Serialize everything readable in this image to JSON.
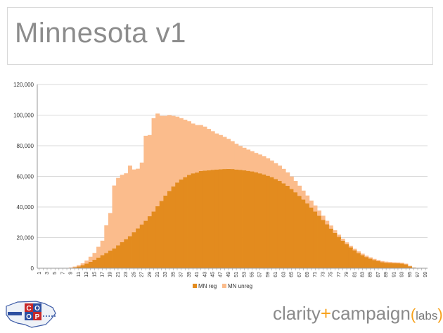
{
  "slide": {
    "title": "Minnesota v1"
  },
  "branding": {
    "coop_logo": "co-op",
    "brand_main": "clarity",
    "brand_plus": "+",
    "brand_second": "campaign",
    "brand_labs_open": "(",
    "brand_labs": "labs",
    "brand_labs_close": ")",
    "plus_color": "#f7a11a"
  },
  "chart_data": {
    "type": "bar",
    "stacked": true,
    "title": "",
    "xlabel": "",
    "ylabel": "",
    "ylim": [
      0,
      120000
    ],
    "yticks": [
      "0",
      "20,000",
      "40,000",
      "60,000",
      "80,000",
      "100,000",
      "120,000"
    ],
    "x": [
      1,
      2,
      3,
      4,
      5,
      6,
      7,
      8,
      9,
      10,
      11,
      12,
      13,
      14,
      15,
      16,
      17,
      18,
      19,
      20,
      21,
      22,
      23,
      24,
      25,
      26,
      27,
      28,
      29,
      30,
      31,
      32,
      33,
      34,
      35,
      36,
      37,
      38,
      39,
      40,
      41,
      42,
      43,
      44,
      45,
      46,
      47,
      48,
      49,
      50,
      51,
      52,
      53,
      54,
      55,
      56,
      57,
      58,
      59,
      60,
      61,
      62,
      63,
      64,
      65,
      66,
      67,
      68,
      69,
      70,
      71,
      72,
      73,
      74,
      75,
      76,
      77,
      78,
      79,
      80,
      81,
      82,
      83,
      84,
      85,
      86,
      87,
      88,
      89,
      90,
      91,
      92,
      93,
      94,
      95,
      96,
      97,
      98,
      99
    ],
    "x_tick_labels": [
      "1",
      "3",
      "5",
      "7",
      "9",
      "11",
      "13",
      "15",
      "17",
      "19",
      "21",
      "23",
      "25",
      "27",
      "29",
      "31",
      "33",
      "35",
      "37",
      "39",
      "41",
      "43",
      "45",
      "47",
      "49",
      "51",
      "53",
      "55",
      "57",
      "59",
      "61",
      "63",
      "65",
      "67",
      "69",
      "71",
      "73",
      "75",
      "77",
      "79",
      "81",
      "83",
      "85",
      "87",
      "89",
      "91",
      "93",
      "95",
      "97",
      "99"
    ],
    "grid": true,
    "legend_position": "bottom",
    "series": [
      {
        "name": "MN reg",
        "color": "#e38b1e",
        "values": [
          0,
          0,
          0,
          0,
          0,
          0,
          0,
          0,
          200,
          600,
          1200,
          2000,
          3000,
          4200,
          5500,
          7000,
          8500,
          10000,
          11500,
          13000,
          15000,
          17000,
          19000,
          21000,
          23500,
          26000,
          28500,
          31000,
          34000,
          37000,
          40500,
          44000,
          47500,
          50500,
          53500,
          56000,
          58000,
          59500,
          61000,
          62000,
          62500,
          63500,
          63800,
          64000,
          64300,
          64500,
          64700,
          64800,
          64900,
          64800,
          64500,
          64300,
          64000,
          63600,
          63200,
          62700,
          62000,
          61300,
          60400,
          59500,
          58300,
          57000,
          55500,
          53800,
          51800,
          49600,
          47300,
          44900,
          42400,
          39700,
          37000,
          34300,
          31500,
          28700,
          25900,
          23100,
          20500,
          18000,
          15700,
          13600,
          11700,
          10000,
          8600,
          7300,
          6200,
          5300,
          4600,
          4000,
          3600,
          3400,
          3300,
          3200,
          3000,
          2500,
          1300,
          400,
          100,
          0,
          0
        ]
      },
      {
        "name": "MN unreg",
        "color": "#fbbc8c",
        "values": [
          0,
          0,
          0,
          0,
          0,
          0,
          0,
          0,
          300,
          500,
          800,
          1200,
          2000,
          3300,
          4500,
          7000,
          9500,
          18000,
          24500,
          41000,
          44000,
          44000,
          43000,
          46000,
          41000,
          39000,
          40500,
          55500,
          53000,
          61000,
          60500,
          55500,
          52000,
          49500,
          46000,
          43000,
          40000,
          37500,
          35000,
          32500,
          31000,
          30000,
          28700,
          27000,
          25200,
          23500,
          22300,
          21000,
          19600,
          18200,
          16800,
          15500,
          14700,
          13900,
          13200,
          12600,
          12300,
          11800,
          11400,
          10800,
          10300,
          10000,
          9400,
          8800,
          8100,
          7400,
          6600,
          5800,
          5100,
          4500,
          4000,
          3400,
          2800,
          2300,
          2000,
          1700,
          1400,
          1300,
          1200,
          1100,
          1000,
          1000,
          900,
          900,
          900,
          800,
          800,
          700,
          700,
          700,
          600,
          600,
          600,
          500,
          300,
          100,
          0,
          0,
          0
        ]
      }
    ]
  }
}
